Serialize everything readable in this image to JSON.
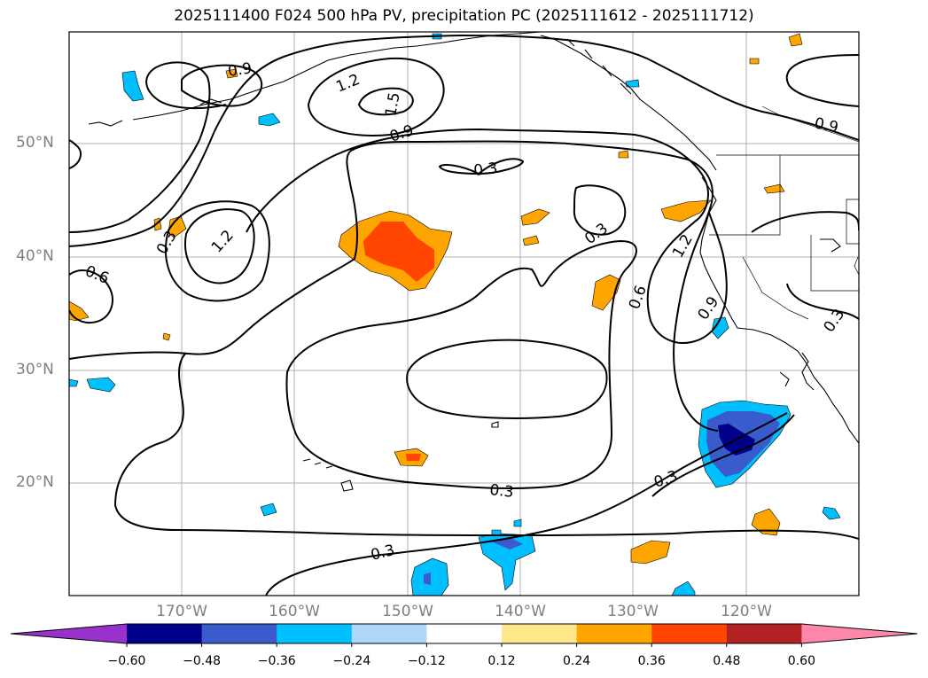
{
  "title": "2025111400 F024 500 hPa PV, precipitation PC (2025111612 - 2025111712)",
  "lat_labels": [
    "50°N",
    "40°N",
    "30°N",
    "20°N"
  ],
  "lon_labels": [
    "170°W",
    "160°W",
    "150°W",
    "140°W",
    "130°W",
    "120°W"
  ],
  "contour_labels": [
    "0.9",
    "1.2",
    "1.5",
    "0.9",
    "0.3",
    "0.9",
    "0.3",
    "1.2",
    "0.6",
    "0.3",
    "0.6",
    "1.2",
    "0.9",
    "0.3",
    "0.3",
    "0.3",
    "0.3"
  ],
  "colorbar": {
    "ticks": [
      "−0.60",
      "−0.48",
      "−0.36",
      "−0.24",
      "−0.12",
      "0.12",
      "0.24",
      "0.36",
      "0.48",
      "0.60"
    ],
    "colors": [
      "#9932cc",
      "#00008b",
      "#3a5bcc",
      "#00bfff",
      "#add8f8",
      "#ffffff",
      "#ffe88c",
      "#ffa500",
      "#ff4500",
      "#b22222",
      "#ff88aa"
    ]
  }
}
